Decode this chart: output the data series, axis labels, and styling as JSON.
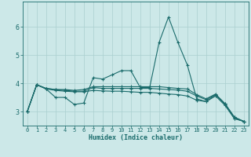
{
  "title": "",
  "xlabel": "Humidex (Indice chaleur)",
  "background_color": "#cce8e8",
  "grid_color": "#aacfcf",
  "line_color": "#1a6b6b",
  "xlim": [
    -0.5,
    23.5
  ],
  "ylim": [
    2.5,
    6.9
  ],
  "yticks": [
    3,
    4,
    5,
    6
  ],
  "xticks": [
    0,
    1,
    2,
    3,
    4,
    5,
    6,
    7,
    8,
    9,
    10,
    11,
    12,
    13,
    14,
    15,
    16,
    17,
    18,
    19,
    20,
    21,
    22,
    23
  ],
  "series1": [
    [
      0,
      3.0
    ],
    [
      1,
      3.95
    ],
    [
      2,
      3.8
    ],
    [
      3,
      3.5
    ],
    [
      4,
      3.5
    ],
    [
      5,
      3.25
    ],
    [
      6,
      3.3
    ],
    [
      7,
      4.2
    ],
    [
      8,
      4.15
    ],
    [
      9,
      4.3
    ],
    [
      10,
      4.45
    ],
    [
      11,
      4.45
    ],
    [
      12,
      3.85
    ],
    [
      13,
      3.85
    ],
    [
      14,
      5.45
    ],
    [
      15,
      6.35
    ],
    [
      16,
      5.45
    ],
    [
      17,
      4.65
    ],
    [
      18,
      3.45
    ],
    [
      19,
      3.35
    ],
    [
      20,
      3.6
    ],
    [
      21,
      3.25
    ],
    [
      22,
      2.75
    ],
    [
      23,
      2.65
    ]
  ],
  "series2": [
    [
      0,
      3.0
    ],
    [
      1,
      3.95
    ],
    [
      2,
      3.82
    ],
    [
      3,
      3.78
    ],
    [
      4,
      3.78
    ],
    [
      5,
      3.75
    ],
    [
      6,
      3.78
    ],
    [
      7,
      3.88
    ],
    [
      8,
      3.88
    ],
    [
      9,
      3.88
    ],
    [
      10,
      3.88
    ],
    [
      11,
      3.88
    ],
    [
      12,
      3.88
    ],
    [
      13,
      3.88
    ],
    [
      14,
      3.88
    ],
    [
      15,
      3.85
    ],
    [
      16,
      3.82
    ],
    [
      17,
      3.8
    ],
    [
      18,
      3.6
    ],
    [
      19,
      3.45
    ],
    [
      20,
      3.62
    ],
    [
      21,
      3.28
    ],
    [
      22,
      2.8
    ],
    [
      23,
      2.65
    ]
  ],
  "series3": [
    [
      0,
      3.0
    ],
    [
      1,
      3.95
    ],
    [
      2,
      3.82
    ],
    [
      3,
      3.78
    ],
    [
      4,
      3.75
    ],
    [
      5,
      3.72
    ],
    [
      6,
      3.72
    ],
    [
      7,
      3.85
    ],
    [
      8,
      3.82
    ],
    [
      9,
      3.82
    ],
    [
      10,
      3.82
    ],
    [
      11,
      3.82
    ],
    [
      12,
      3.82
    ],
    [
      13,
      3.82
    ],
    [
      14,
      3.8
    ],
    [
      15,
      3.78
    ],
    [
      16,
      3.76
    ],
    [
      17,
      3.72
    ],
    [
      18,
      3.55
    ],
    [
      19,
      3.42
    ],
    [
      20,
      3.6
    ],
    [
      21,
      3.28
    ],
    [
      22,
      2.8
    ],
    [
      23,
      2.65
    ]
  ],
  "series4": [
    [
      0,
      3.0
    ],
    [
      1,
      3.95
    ],
    [
      2,
      3.8
    ],
    [
      3,
      3.75
    ],
    [
      4,
      3.72
    ],
    [
      5,
      3.7
    ],
    [
      6,
      3.7
    ],
    [
      7,
      3.75
    ],
    [
      8,
      3.73
    ],
    [
      9,
      3.72
    ],
    [
      10,
      3.72
    ],
    [
      11,
      3.7
    ],
    [
      12,
      3.68
    ],
    [
      13,
      3.68
    ],
    [
      14,
      3.65
    ],
    [
      15,
      3.62
    ],
    [
      16,
      3.6
    ],
    [
      17,
      3.55
    ],
    [
      18,
      3.4
    ],
    [
      19,
      3.35
    ],
    [
      20,
      3.55
    ],
    [
      21,
      3.22
    ],
    [
      22,
      2.75
    ],
    [
      23,
      2.65
    ]
  ]
}
